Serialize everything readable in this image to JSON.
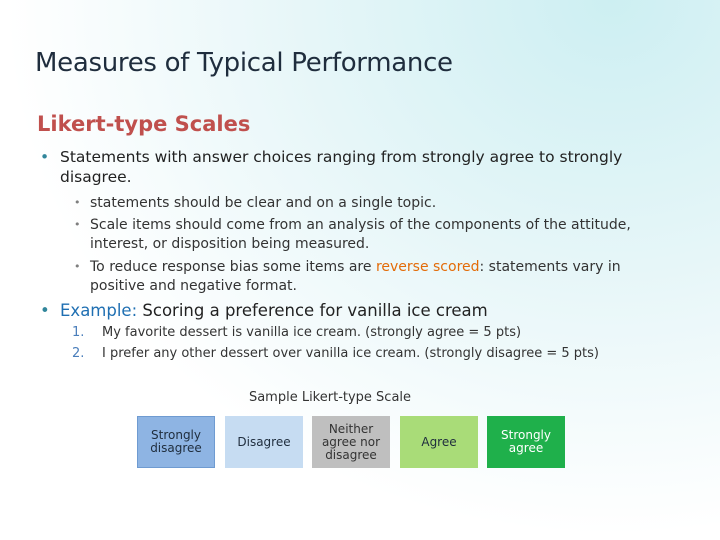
{
  "slide": {
    "title": "Measures of Typical Performance",
    "subtitle": "Likert-type Scales",
    "bullets": [
      {
        "text": "Statements with answer choices ranging from strongly agree to strongly disagree.",
        "subs": [
          {
            "parts": [
              "statements should be clear and on a single topic."
            ]
          },
          {
            "parts": [
              "Scale items should come from an analysis of the components of the attitude, interest, or disposition being measured."
            ]
          },
          {
            "parts": [
              "To reduce response bias some items are ",
              "reverse scored",
              ": statements vary in positive and negative format."
            ]
          }
        ]
      },
      {
        "label": "Example:",
        "text": " Scoring a preference for vanilla ice cream",
        "items": [
          {
            "num": "1.",
            "text": "My favorite dessert is vanilla ice cream. (strongly agree = 5 pts)"
          },
          {
            "num": "2.",
            "text": "I prefer any other dessert over vanilla ice cream. (strongly disagree = 5 pts)"
          }
        ]
      }
    ],
    "scale": {
      "caption": "Sample Likert-type Scale",
      "options": [
        "Strongly disagree",
        "Disagree",
        "Neither agree nor disagree",
        "Agree",
        "Strongly agree"
      ]
    }
  }
}
